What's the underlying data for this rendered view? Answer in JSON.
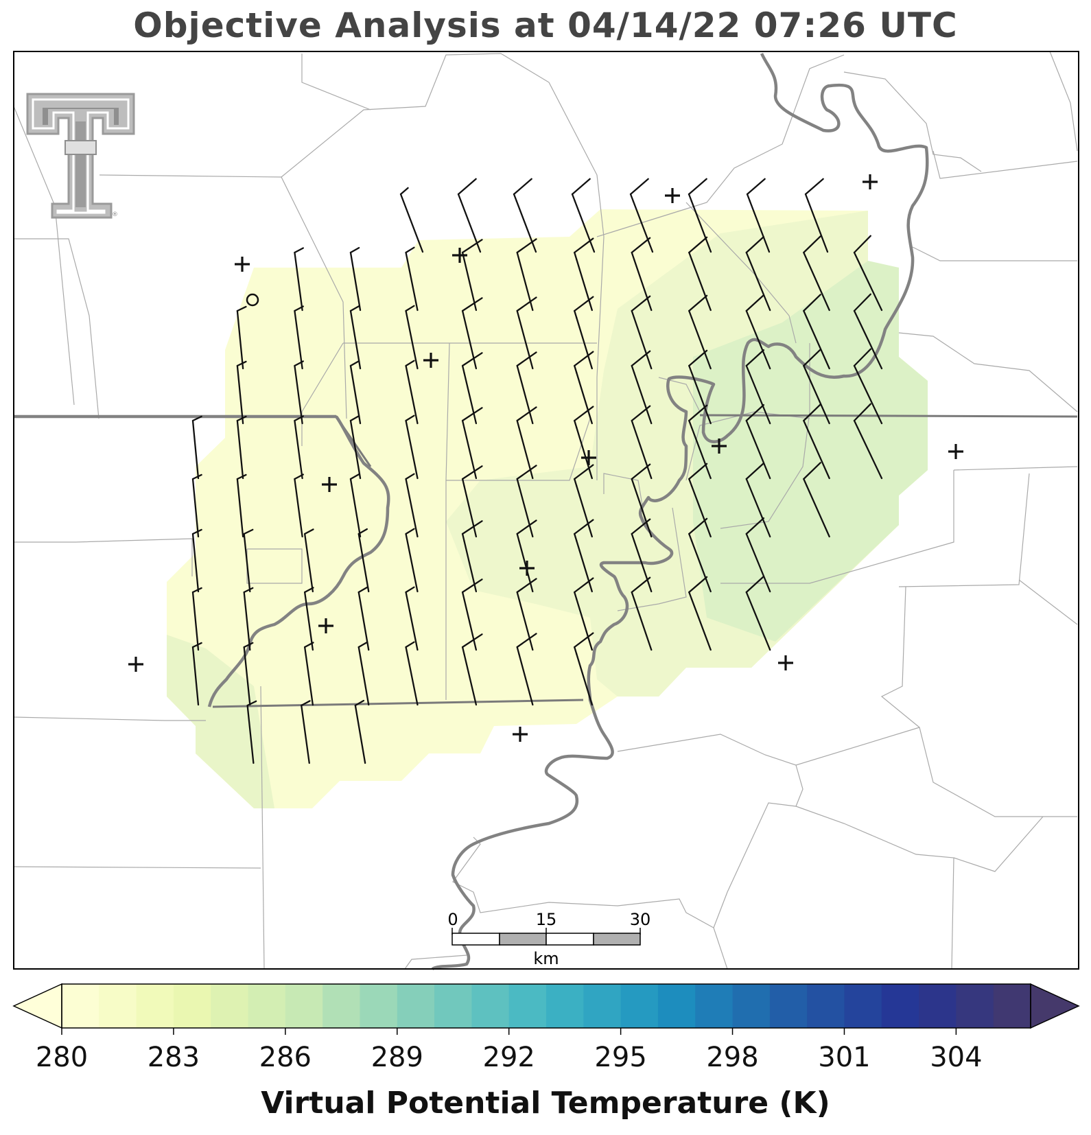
{
  "title": "Objective Analysis at 04/14/22 07:26 UTC",
  "logo": {
    "name": "texas-tech-double-t-logo",
    "mark": "®"
  },
  "scale_bar": {
    "ticks": [
      "0",
      "15",
      "30"
    ],
    "unit": "km"
  },
  "colorbar": {
    "label": "Virtual Potential Temperature (K)",
    "min": 280,
    "max": 306,
    "step": 1,
    "extend": "both",
    "ticks": [
      "280",
      "283",
      "286",
      "289",
      "292",
      "295",
      "298",
      "301",
      "304"
    ],
    "colormap": [
      "#ffffd9",
      "#edf8b1",
      "#c7e9b4",
      "#7fcdbb",
      "#41b6c4",
      "#1d91c0",
      "#225ea8",
      "#253494",
      "#45396b"
    ]
  },
  "colors": {
    "field_low": "#fafdd2",
    "field_mid": "#eef7cc",
    "field_high": "#d9f0c4",
    "state_border": "#808080",
    "river": "#808080",
    "county_lines": "#a9a9a9",
    "title": "#444444"
  },
  "station_markers": [
    {
      "type": "plus"
    },
    {
      "type": "plus"
    },
    {
      "type": "plus"
    },
    {
      "type": "plus"
    },
    {
      "type": "plus"
    },
    {
      "type": "plus"
    },
    {
      "type": "plus"
    },
    {
      "type": "plus"
    },
    {
      "type": "plus"
    },
    {
      "type": "plus"
    },
    {
      "type": "plus"
    },
    {
      "type": "plus"
    },
    {
      "type": "plus"
    },
    {
      "type": "plus"
    },
    {
      "type": "circle"
    }
  ]
}
